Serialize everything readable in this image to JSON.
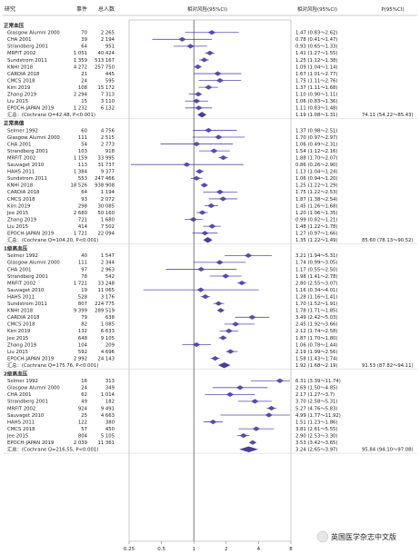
{
  "chart_data": {
    "type": "forest",
    "headers": {
      "study": "研究",
      "events": "事件",
      "total": "总人数",
      "plot": "相对风险(95%CI)",
      "rr": "相对风险(95%CI)",
      "p": "P(95%CI)"
    },
    "x_ticks": [
      0.25,
      0.5,
      1,
      2,
      4,
      8
    ],
    "x_tick_labels": [
      "0.25",
      "0.5",
      "1",
      "2",
      "4",
      "8"
    ],
    "x_scale": "log2",
    "ref_line": 1,
    "sections": [
      {
        "label": "正常血压",
        "rows": [
          {
            "study": "Glasgow Alumni 2000",
            "events": "70",
            "total": "2 265",
            "rr": 1.47,
            "lo": 0.83,
            "hi": 2.62,
            "text": "1.47 (0.83～2.62)"
          },
          {
            "study": "CHA 2001",
            "events": "39",
            "total": "2 194",
            "rr": 0.78,
            "lo": 0.41,
            "hi": 1.47,
            "text": "0.78 (0.41～1.47)"
          },
          {
            "study": "Strandberg 2001",
            "events": "64",
            "total": "951",
            "rr": 0.93,
            "lo": 0.65,
            "hi": 1.33,
            "text": "0.93 (0.65～1.33)"
          },
          {
            "study": "MRFIT 2002",
            "events": "1 051",
            "total": "40 424",
            "rr": 1.41,
            "lo": 1.27,
            "hi": 1.55,
            "text": "1.41 (1.27～1.55)"
          },
          {
            "study": "Sundstrom 2011",
            "events": "1 359",
            "total": "513 167",
            "rr": 1.25,
            "lo": 1.12,
            "hi": 1.38,
            "text": "1.25 (1.12～1.38)"
          },
          {
            "study": "KNHI 2018",
            "events": "4 272",
            "total": "257 750",
            "rr": 1.09,
            "lo": 1.04,
            "hi": 1.14,
            "text": "1.09 (1.04～1.14)"
          },
          {
            "study": "CARDIA 2018",
            "events": "21",
            "total": "445",
            "rr": 1.67,
            "lo": 1.01,
            "hi": 2.77,
            "text": "1.67 (1.01～2.77)"
          },
          {
            "study": "CMCS 2018",
            "events": "24",
            "total": "595",
            "rr": 1.75,
            "lo": 1.11,
            "hi": 2.76,
            "text": "1.75 (1.11～2.76)"
          },
          {
            "study": "Kim 2019",
            "events": "108",
            "total": "15 172",
            "rr": 1.37,
            "lo": 1.11,
            "hi": 1.68,
            "text": "1.37 (1.11～1.68)"
          },
          {
            "study": "Zhang 2019",
            "events": "2 294",
            "total": "7 313",
            "rr": 1.1,
            "lo": 0.9,
            "hi": 1.11,
            "text": "1.10 (0.90～1.11)"
          },
          {
            "study": "Liu 2015",
            "events": "15",
            "total": "3 110",
            "rr": 1.06,
            "lo": 0.83,
            "hi": 1.36,
            "text": "1.06 (0.83～1.36)"
          },
          {
            "study": "EPOCH-JAPAN 2019",
            "events": "1 232",
            "total": "6 132",
            "rr": 1.11,
            "lo": 0.83,
            "hi": 1.48,
            "text": "1.11 (0.83～1.48)"
          }
        ],
        "summary": {
          "label": "汇总：(Cochrane Q=42.48, P<0.001)",
          "rr": 1.19,
          "lo": 1.08,
          "hi": 1.31,
          "text": "1.19 (1.08～1.31)",
          "i2": "74.11 (54.22～85.43)"
        }
      },
      {
        "label": "正常高值",
        "rows": [
          {
            "study": "Selmer 1992",
            "events": "60",
            "total": "4 756",
            "rr": 1.37,
            "lo": 0.98,
            "hi": 2.51,
            "text": "1.37 (0.98～2.51)"
          },
          {
            "study": "Glasgow Alumni 2000",
            "events": "111",
            "total": "2 515",
            "rr": 1.7,
            "lo": 0.97,
            "hi": 2.97,
            "text": "1.70 (0.97～2.97)"
          },
          {
            "study": "CHA 2001",
            "events": "54",
            "total": "2 773",
            "rr": 1.06,
            "lo": 0.49,
            "hi": 2.31,
            "text": "1.06 (0.49～2.31)"
          },
          {
            "study": "Strandberg 2001",
            "events": "103",
            "total": "918",
            "rr": 1.54,
            "lo": 1.12,
            "hi": 2.16,
            "text": "1.54 (1.12～2.16)"
          },
          {
            "study": "MRFIT 2002",
            "events": "1 159",
            "total": "33 995",
            "rr": 1.88,
            "lo": 1.7,
            "hi": 2.07,
            "text": "1.88 (1.70～2.07)"
          },
          {
            "study": "Sauvaget 2010",
            "events": "113",
            "total": "31 737",
            "rr": 0.86,
            "lo": 0.26,
            "hi": 2.9,
            "text": "0.86 (0.26～2.90)"
          },
          {
            "study": "HAHS 2011",
            "events": "1 384",
            "total": "9 377",
            "rr": 1.13,
            "lo": 1.04,
            "hi": 1.24,
            "text": "1.13 (1.04～1.24)"
          },
          {
            "study": "Sundstrom 2011",
            "events": "553",
            "total": "247 466",
            "rr": 1.06,
            "lo": 0.94,
            "hi": 1.2,
            "text": "1.06 (0.94～1.20)"
          },
          {
            "study": "KNHI 2018",
            "events": "18 526",
            "total": "938 908",
            "rr": 1.25,
            "lo": 1.22,
            "hi": 1.29,
            "text": "1.25 (1.22～1.29)"
          },
          {
            "study": "CARDIA 2018",
            "events": "64",
            "total": "1 194",
            "rr": 1.75,
            "lo": 1.22,
            "hi": 2.53,
            "text": "1.75 (1.22～2.53)"
          },
          {
            "study": "CMCS 2018",
            "events": "93",
            "total": "2 072",
            "rr": 1.87,
            "lo": 1.38,
            "hi": 2.54,
            "text": "1.87 (1.38～2.54)"
          },
          {
            "study": "Kim 2019",
            "events": "298",
            "total": "30 085",
            "rr": 1.45,
            "lo": 1.26,
            "hi": 1.68,
            "text": "1.45 (1.26～1.68)"
          },
          {
            "study": "Jee 2015",
            "events": "2 680",
            "total": "50 160",
            "rr": 1.2,
            "lo": 1.06,
            "hi": 1.35,
            "text": "1.20 (1.06～1.35)"
          },
          {
            "study": "Zhang 2019",
            "events": "721",
            "total": "1 680",
            "rr": 0.99,
            "lo": 0.82,
            "hi": 1.21,
            "text": "0.99 (0.82～1.21)"
          },
          {
            "study": "Liu 2015",
            "events": "414",
            "total": "7 502",
            "rr": 1.48,
            "lo": 1.22,
            "hi": 1.78,
            "text": "1.48 (1.22～1.78)"
          },
          {
            "study": "EPOCH-JAPAN 2019",
            "events": "1 721",
            "total": "22 094",
            "rr": 1.27,
            "lo": 0.97,
            "hi": 1.66,
            "text": "1.27 (0.97～1.66)"
          }
        ],
        "summary": {
          "label": "汇总：(Cochrane Q=104.20, P<0.001)",
          "rr": 1.35,
          "lo": 1.22,
          "hi": 1.49,
          "text": "1.35 (1.22～1.49)",
          "i2": "85.60 (78.13～90.52)"
        }
      },
      {
        "label": "1级高血压",
        "rows": [
          {
            "study": "Selmer 1992",
            "events": "40",
            "total": "1 547",
            "rr": 3.21,
            "lo": 1.94,
            "hi": 5.31,
            "text": "3.21 (1.94～5.31)"
          },
          {
            "study": "Glasgow Alumni 2000",
            "events": "111",
            "total": "2 344",
            "rr": 1.74,
            "lo": 0.99,
            "hi": 3.05,
            "text": "1.74 (0.99～3.05)"
          },
          {
            "study": "CHA 2001",
            "events": "97",
            "total": "2 963",
            "rr": 1.17,
            "lo": 0.55,
            "hi": 2.5,
            "text": "1.17 (0.55～2.50)"
          },
          {
            "study": "Strandberg 2001",
            "events": "78",
            "total": "542",
            "rr": 1.98,
            "lo": 1.41,
            "hi": 2.78,
            "text": "1.98 (1.41～2.78)"
          },
          {
            "study": "MRFIT 2002",
            "events": "1 721",
            "total": "33 248",
            "rr": 2.8,
            "lo": 2.55,
            "hi": 3.07,
            "text": "2.80 (2.55～3.07)"
          },
          {
            "study": "Sauvaget 2010",
            "events": "19",
            "total": "11 065",
            "rr": 1.16,
            "lo": 0.34,
            "hi": 4.01,
            "text": "1.16 (0.34～4.01)"
          },
          {
            "study": "HAHS 2011",
            "events": "528",
            "total": "3 176",
            "rr": 1.28,
            "lo": 1.16,
            "hi": 1.41,
            "text": "1.28 (1.16～1.41)"
          },
          {
            "study": "Sundstrom 2011",
            "events": "807",
            "total": "224 775",
            "rr": 1.7,
            "lo": 1.52,
            "hi": 1.91,
            "text": "1.70 (1.52～1.91)"
          },
          {
            "study": "KNHI 2018",
            "events": "9 399",
            "total": "289 519",
            "rr": 1.78,
            "lo": 1.71,
            "hi": 1.85,
            "text": "1.78 (1.71～1.85)"
          },
          {
            "study": "CARDIA 2018",
            "events": "79",
            "total": "638",
            "rr": 3.49,
            "lo": 2.42,
            "hi": 5.03,
            "text": "3.49 (2.42～5.03)"
          },
          {
            "study": "CMCS 2018",
            "events": "82",
            "total": "1 085",
            "rr": 2.45,
            "lo": 1.92,
            "hi": 3.66,
            "text": "2.45 (1.92～3.66)"
          },
          {
            "study": "Kim 2019",
            "events": "132",
            "total": "6 633",
            "rr": 2.12,
            "lo": 1.74,
            "hi": 2.58,
            "text": "2.12 (1.74～2.58)"
          },
          {
            "study": "Jee 2015",
            "events": "648",
            "total": "9 105",
            "rr": 1.87,
            "lo": 1.7,
            "hi": 1.8,
            "text": "1.87 (1.70～1.80)"
          },
          {
            "study": "Zhang 2019",
            "events": "104",
            "total": "209",
            "rr": 1.06,
            "lo": 0.78,
            "hi": 1.44,
            "text": "1.06 (0.78～1.44)"
          },
          {
            "study": "Liu 2015",
            "events": "592",
            "total": "4 696",
            "rr": 2.19,
            "lo": 1.99,
            "hi": 2.56,
            "text": "2.19 (1.99～2.56)"
          },
          {
            "study": "EPOCH-JAPAN 2019",
            "events": "2 992",
            "total": "24 143",
            "rr": 1.58,
            "lo": 1.43,
            "hi": 1.74,
            "text": "1.58 (1.43～1.74)"
          }
        ],
        "summary": {
          "label": "汇总：(Cochrane Q=175.76, P<0.001)",
          "rr": 1.92,
          "lo": 1.68,
          "hi": 2.19,
          "text": "1.92 (1.68～2.19)",
          "i2": "91.53 (87.82～94.11)"
        }
      },
      {
        "label": "2级高血压",
        "rows": [
          {
            "study": "Selmer 1992",
            "events": "16",
            "total": "313",
            "rr": 6.31,
            "lo": 3.39,
            "hi": 11.74,
            "text": "6.31 (3.39～11.74)"
          },
          {
            "study": "Glasgow Alumni 2000",
            "events": "24",
            "total": "349",
            "rr": 2.69,
            "lo": 1.5,
            "hi": 4.85,
            "text": "2.69 (1.50～4.85)"
          },
          {
            "study": "CHA 2001",
            "events": "62",
            "total": "1 014",
            "rr": 2.17,
            "lo": 1.27,
            "hi": 3.7,
            "text": "2.17 (1.27～3.7)"
          },
          {
            "study": "Strandberg 2001",
            "events": "49",
            "total": "182",
            "rr": 3.7,
            "lo": 2.58,
            "hi": 5.31,
            "text": "3.70 (2.58～5.31)"
          },
          {
            "study": "MRFIT 2002",
            "events": "924",
            "total": "9 491",
            "rr": 5.27,
            "lo": 4.76,
            "hi": 5.83,
            "text": "5.27 (4.76～5.83)"
          },
          {
            "study": "Sauvaget 2010",
            "events": "25",
            "total": "4 663",
            "rr": 4.99,
            "lo": 1.77,
            "hi": 11.92,
            "text": "4.99 (1.77～11.92)"
          },
          {
            "study": "HAHS 2011",
            "events": "122",
            "total": "380",
            "rr": 1.51,
            "lo": 1.23,
            "hi": 1.86,
            "text": "1.51 (1.23～1.86)"
          },
          {
            "study": "CMCS 2018",
            "events": "57",
            "total": "450",
            "rr": 3.81,
            "lo": 2.61,
            "hi": 5.55,
            "text": "3.81 (2.61～5.55)"
          },
          {
            "study": "Jee 2015",
            "events": "804",
            "total": "5 105",
            "rr": 2.9,
            "lo": 2.53,
            "hi": 3.3,
            "text": "2.90 (2.53～3.30)"
          },
          {
            "study": "EPOCH-JAPAN 2019",
            "events": "2 039",
            "total": "11 361",
            "rr": 3.53,
            "lo": 3.42,
            "hi": 3.65,
            "text": "3.53 (3.42～3.65)"
          }
        ],
        "summary": {
          "label": "汇总：(Cochrane Q=216.55, P<0.001)",
          "rr": 3.24,
          "lo": 2.65,
          "hi": 3.97,
          "text": "3.24 (2.65～3.97)",
          "i2": "95.84 (94.10～97.08)"
        }
      }
    ]
  },
  "watermark": "英国医学杂志中文版",
  "colors": {
    "marker": "#5a4aa8",
    "summary": "#4a3d98",
    "ref": "#444444",
    "text": "#222222",
    "grid": "#cfcfcf"
  }
}
